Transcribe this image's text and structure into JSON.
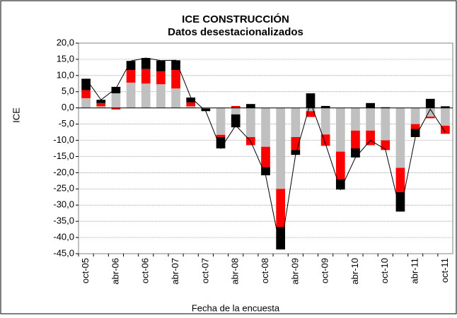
{
  "chart_data": {
    "type": "stacked-bar-line",
    "title": "ICE CONSTRUCCIÓN",
    "subtitle": "Datos desestacionalizados",
    "y_label": "ICE",
    "x_label": "Fecha de la encuesta",
    "categories": [
      "oct-05",
      null,
      "abr-06",
      null,
      "oct-06",
      null,
      "abr-07",
      null,
      "oct-07",
      null,
      "abr-08",
      null,
      "oct-08",
      null,
      "abr-09",
      null,
      "oct-09",
      null,
      "abr-10",
      null,
      "oct-10",
      null,
      "abr-11",
      null,
      "oct-11"
    ],
    "series": [
      {
        "color": "#c0c0c0",
        "values": [
          3.0,
          0.5,
          4.5,
          7.8,
          7.5,
          7.3,
          6.0,
          0.5,
          -0.2,
          -8.3,
          -2.0,
          -9.0,
          -12.0,
          -25.0,
          -9.0,
          -1.0,
          -8.2,
          -13.5,
          -7.0,
          -7.0,
          -10.0,
          -18.5,
          -5.0,
          -2.7,
          -5.5
        ]
      },
      {
        "color": "#ff0000",
        "values": [
          2.5,
          1.0,
          -0.5,
          3.9,
          4.5,
          4.0,
          5.7,
          1.2,
          0.0,
          -0.7,
          0.6,
          -2.5,
          -6.3,
          -11.7,
          -4.0,
          -1.8,
          -3.5,
          -8.5,
          -5.5,
          -4.5,
          -3.0,
          -7.5,
          -1.5,
          -0.5,
          -2.5
        ]
      },
      {
        "color": "#000000",
        "values": [
          3.5,
          1.0,
          2.0,
          2.8,
          3.4,
          3.3,
          3.0,
          1.5,
          -0.8,
          -3.5,
          -4.0,
          1.2,
          -2.5,
          -7.0,
          -1.5,
          4.5,
          0.6,
          -3.2,
          -2.8,
          1.5,
          0.2,
          -6.0,
          -2.5,
          2.8,
          0.5
        ]
      },
      {
        "type": "line",
        "color": "#000000",
        "values": [
          9.0,
          2.5,
          6.0,
          14.5,
          15.4,
          14.6,
          14.7,
          3.2,
          -1.0,
          -12.5,
          -5.4,
          -10.3,
          -20.8,
          -43.7,
          -14.5,
          1.7,
          -11.1,
          -25.2,
          -15.3,
          -10.0,
          -12.8,
          -32.0,
          -9.0,
          -0.4,
          -7.5
        ]
      }
    ],
    "ylim": [
      -45,
      20
    ],
    "yticks": [
      {
        "value": -45,
        "label": "-45,0"
      },
      {
        "value": -40,
        "label": "-40,0"
      },
      {
        "value": -35,
        "label": "-35,0"
      },
      {
        "value": -30,
        "label": "-30,0"
      },
      {
        "value": -25,
        "label": "-25,0"
      },
      {
        "value": -20,
        "label": "-20,0"
      },
      {
        "value": -15,
        "label": "-15,0"
      },
      {
        "value": -10,
        "label": "-10,0"
      },
      {
        "value": -5,
        "label": "-5,0"
      },
      {
        "value": 0,
        "label": "0,0"
      },
      {
        "value": 5,
        "label": "5,0"
      },
      {
        "value": 10,
        "label": "10,0"
      },
      {
        "value": 15,
        "label": "15,0"
      },
      {
        "value": 20,
        "label": "20,0"
      }
    ],
    "grid": true
  }
}
